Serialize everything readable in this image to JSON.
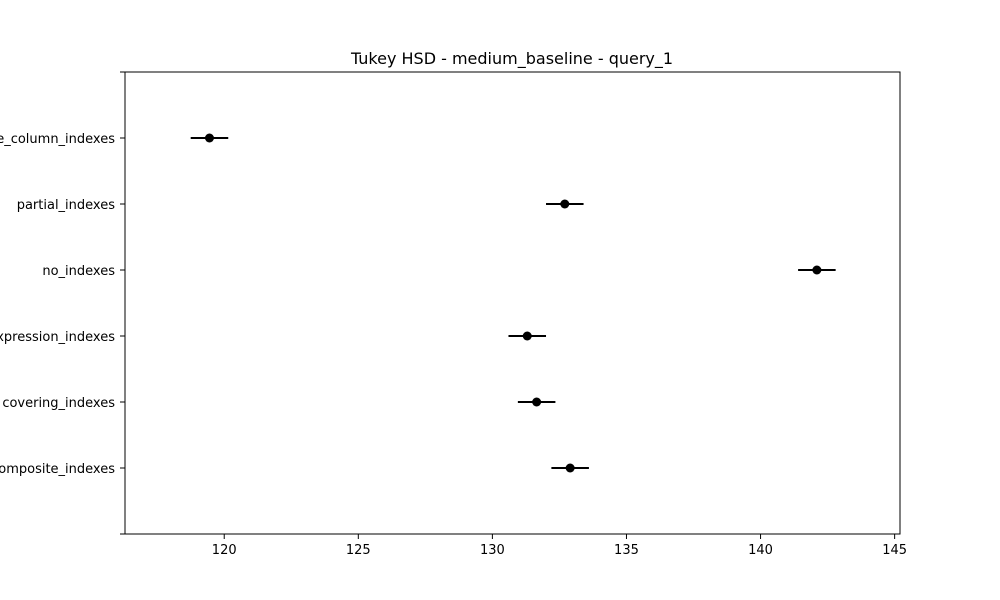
{
  "chart_data": {
    "type": "scatter",
    "title": "Tukey HSD - medium_baseline - query_1",
    "xlabel": "",
    "ylabel": "",
    "xlim": [
      116.3,
      145.2
    ],
    "x_ticks": [
      120,
      125,
      130,
      135,
      140,
      145
    ],
    "categories": [
      "single_column_indexes",
      "partial_indexes",
      "no_indexes",
      "expression_indexes",
      "covering_indexes",
      "composite_indexes"
    ],
    "series": [
      {
        "means": [
          119.45,
          132.7,
          142.1,
          131.3,
          131.65,
          132.9
        ],
        "lower": [
          118.75,
          132.0,
          141.4,
          130.6,
          130.95,
          132.2
        ],
        "upper": [
          120.15,
          133.4,
          142.8,
          132.0,
          132.35,
          133.6
        ]
      }
    ],
    "grid": false,
    "marker_color": "#000000",
    "line_color": "#000000"
  }
}
